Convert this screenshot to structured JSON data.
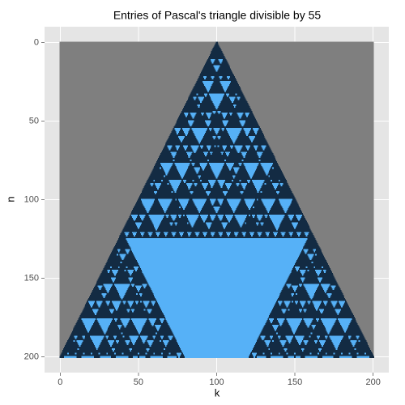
{
  "chart_data": {
    "type": "raster",
    "title": "Entries of Pascal's triangle divisible by 55",
    "x_label": "k",
    "y_label": "n",
    "divisor": 55,
    "xlim": [
      -10,
      210
    ],
    "ylim": [
      -10,
      210
    ],
    "y_reversed": true,
    "xticks": [
      0,
      50,
      100,
      150,
      200
    ],
    "yticks": [
      0,
      50,
      100,
      150,
      200
    ],
    "colors": {
      "divisible": "#56B1F7",
      "not_divisible": "#132B43",
      "outside": "#7F7F7F"
    },
    "panel_color": "#E5E5E5",
    "grid": true
  }
}
